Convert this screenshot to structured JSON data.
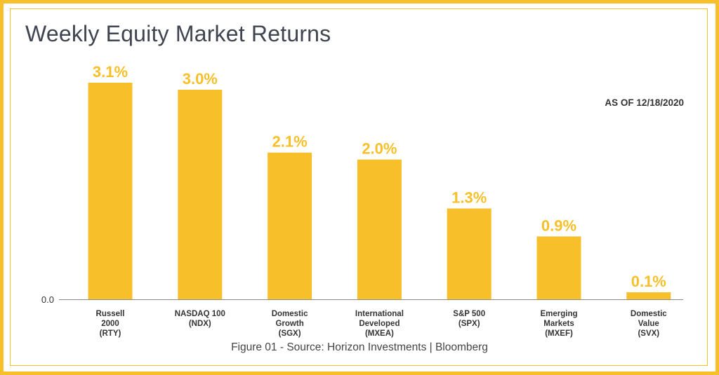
{
  "title": "Weekly Equity Market Returns",
  "as_of": "AS OF 12/18/2020",
  "caption": "Figure 01 - Source: Horizon Investments | Bloomberg",
  "colors": {
    "bar": "#f7c02b",
    "label": "#f7c02b",
    "axis": "#333333",
    "border": "#f7c02b"
  },
  "chart_data": {
    "type": "bar",
    "title": "Weekly Equity Market Returns",
    "xlabel": "",
    "ylabel": "",
    "ylim": [
      0,
      3.1
    ],
    "y_ticks": [
      "0.0"
    ],
    "grid": false,
    "categories": [
      [
        "Russell",
        "2000",
        "(RTY)"
      ],
      [
        "NASDAQ 100",
        "(NDX)"
      ],
      [
        "Domestic",
        "Growth",
        "(SGX)"
      ],
      [
        "International",
        "Developed",
        "(MXEA)"
      ],
      [
        "S&P 500",
        "(SPX)"
      ],
      [
        "Emerging",
        "Markets",
        "(MXEF)"
      ],
      [
        "Domestic",
        "Value",
        "(SVX)"
      ]
    ],
    "values": [
      3.1,
      3.0,
      2.1,
      2.0,
      1.3,
      0.9,
      0.1
    ],
    "value_labels": [
      "3.1%",
      "3.0%",
      "2.1%",
      "2.0%",
      "1.3%",
      "0.9%",
      "0.1%"
    ]
  }
}
